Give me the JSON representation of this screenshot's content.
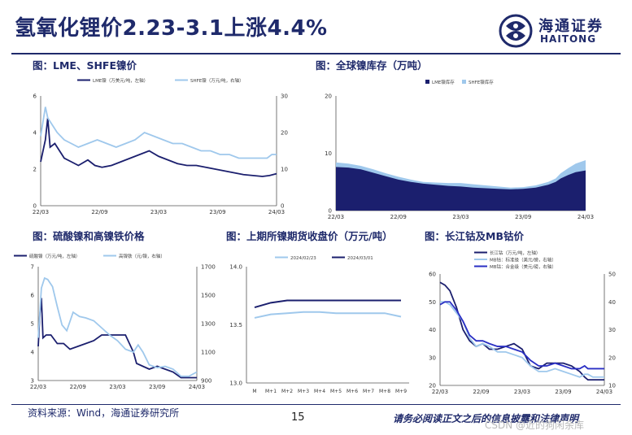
{
  "header": {
    "title": "氢氧化锂价2.23-3.1上涨4.4%",
    "logo_cn": "海通证券",
    "logo_en": "HAITONG"
  },
  "footer": {
    "source": "资料来源：Wind，海通证券研究所",
    "page": "15",
    "disclaimer": "请务必阅读正文之后的信息披露和法律声明",
    "watermark": "CSDN @近的狗闲余库"
  },
  "colors": {
    "navy": "#1b1f6e",
    "light": "#9fc8ec",
    "brand": "#1f2a6b"
  },
  "chart_data": [
    {
      "id": "lme_shfe",
      "type": "line",
      "title": "图：LME、SHFE镍价",
      "x_ticks": [
        "22/03",
        "22/09",
        "23/03",
        "23/09",
        "24/03"
      ],
      "y_left_ticks": [
        "0",
        "2",
        "4",
        "6"
      ],
      "y_right_ticks": [
        "0",
        "10",
        "20",
        "30"
      ],
      "ylim_left": [
        0,
        6
      ],
      "ylim_right": [
        0,
        30
      ],
      "series": [
        {
          "name": "LME镍（万美元/吨，左轴）",
          "axis": "left",
          "color": "#1b1f6e",
          "x": [
            0,
            0.02,
            0.03,
            0.04,
            0.06,
            0.08,
            0.1,
            0.13,
            0.16,
            0.2,
            0.23,
            0.26,
            0.3,
            0.34,
            0.38,
            0.42,
            0.46,
            0.5,
            0.54,
            0.58,
            0.62,
            0.66,
            0.7,
            0.74,
            0.78,
            0.82,
            0.86,
            0.9,
            0.94,
            0.97,
            1.0
          ],
          "values": [
            2.4,
            3.6,
            4.8,
            3.2,
            3.4,
            3.0,
            2.6,
            2.4,
            2.2,
            2.5,
            2.2,
            2.1,
            2.2,
            2.4,
            2.6,
            2.8,
            3.0,
            2.7,
            2.5,
            2.3,
            2.2,
            2.2,
            2.1,
            2.0,
            1.9,
            1.8,
            1.7,
            1.65,
            1.6,
            1.65,
            1.75
          ]
        },
        {
          "name": "SHFE镍（万元/吨，右轴）",
          "axis": "right",
          "color": "#9fc8ec",
          "x": [
            0,
            0.02,
            0.03,
            0.05,
            0.07,
            0.1,
            0.13,
            0.16,
            0.2,
            0.24,
            0.28,
            0.32,
            0.36,
            0.4,
            0.44,
            0.48,
            0.52,
            0.56,
            0.6,
            0.64,
            0.68,
            0.72,
            0.76,
            0.8,
            0.84,
            0.88,
            0.92,
            0.96,
            0.98,
            1.0
          ],
          "values": [
            19,
            27,
            24,
            22,
            20,
            18,
            17,
            16,
            17,
            18,
            17,
            16,
            17,
            18,
            20,
            19,
            18,
            17,
            17,
            16,
            15,
            15,
            14,
            14,
            13,
            13,
            13,
            13,
            14,
            14
          ]
        }
      ]
    },
    {
      "id": "inventory",
      "type": "area",
      "title": "图：全球镍库存（万吨）",
      "x_ticks": [
        "22/03",
        "22/09",
        "23/03",
        "23/09",
        "24/03"
      ],
      "y_ticks": [
        "0",
        "10",
        "20"
      ],
      "ylim": [
        0,
        20
      ],
      "series": [
        {
          "name": "LME镍库存",
          "color": "#1b1f6e",
          "x": [
            0,
            0.05,
            0.1,
            0.15,
            0.2,
            0.25,
            0.3,
            0.35,
            0.4,
            0.45,
            0.5,
            0.55,
            0.6,
            0.65,
            0.7,
            0.75,
            0.8,
            0.85,
            0.88,
            0.9,
            0.93,
            0.96,
            1.0
          ],
          "values": [
            7.6,
            7.5,
            7.2,
            6.6,
            6.0,
            5.4,
            5.0,
            4.7,
            4.5,
            4.3,
            4.2,
            4.0,
            3.9,
            3.8,
            3.7,
            3.8,
            4.0,
            4.5,
            5.0,
            5.6,
            6.2,
            6.7,
            7.0
          ]
        },
        {
          "name": "SHFE镍库存",
          "color": "#9fc8ec",
          "x": [
            0,
            0.05,
            0.1,
            0.15,
            0.2,
            0.25,
            0.3,
            0.35,
            0.4,
            0.45,
            0.5,
            0.55,
            0.6,
            0.65,
            0.7,
            0.75,
            0.8,
            0.85,
            0.88,
            0.9,
            0.93,
            0.96,
            1.0
          ],
          "values": [
            8.4,
            8.2,
            7.8,
            7.2,
            6.5,
            5.9,
            5.4,
            5.0,
            4.9,
            4.8,
            4.8,
            4.6,
            4.4,
            4.2,
            4.0,
            4.1,
            4.4,
            5.0,
            5.6,
            6.5,
            7.4,
            8.2,
            8.8
          ]
        }
      ]
    },
    {
      "id": "sulfate_ferro",
      "type": "line",
      "title": "图：硫酸镍和高镍铁价格",
      "x_ticks": [
        "22/03",
        "22/09",
        "23/03",
        "23/09",
        "24/03"
      ],
      "y_left_ticks": [
        "3",
        "4",
        "5",
        "6",
        "7"
      ],
      "y_right_ticks": [
        "900",
        "1100",
        "1300",
        "1500",
        "1700"
      ],
      "ylim_left": [
        3,
        7
      ],
      "ylim_right": [
        900,
        1700
      ],
      "series": [
        {
          "name": "硫酸镍（万元/吨，左轴）",
          "axis": "left",
          "color": "#1b1f6e",
          "x": [
            0,
            0.01,
            0.02,
            0.03,
            0.05,
            0.08,
            0.12,
            0.16,
            0.2,
            0.25,
            0.3,
            0.35,
            0.4,
            0.45,
            0.5,
            0.55,
            0.6,
            0.62,
            0.66,
            0.7,
            0.75,
            0.8,
            0.85,
            0.9,
            0.95,
            1.0
          ],
          "values": [
            4.2,
            5.3,
            5.9,
            4.5,
            4.6,
            4.6,
            4.3,
            4.3,
            4.1,
            4.2,
            4.3,
            4.4,
            4.6,
            4.6,
            4.6,
            4.6,
            4.0,
            3.6,
            3.5,
            3.4,
            3.5,
            3.4,
            3.3,
            3.1,
            3.1,
            3.1
          ]
        },
        {
          "name": "高镍铁（元/镍，右轴）",
          "axis": "right",
          "color": "#9fc8ec",
          "x": [
            0,
            0.02,
            0.04,
            0.06,
            0.09,
            0.12,
            0.15,
            0.18,
            0.22,
            0.26,
            0.3,
            0.35,
            0.4,
            0.45,
            0.5,
            0.55,
            0.6,
            0.63,
            0.66,
            0.7,
            0.75,
            0.8,
            0.85,
            0.9,
            0.95,
            1.0
          ],
          "values": [
            1200,
            1550,
            1620,
            1610,
            1560,
            1420,
            1290,
            1250,
            1380,
            1350,
            1340,
            1320,
            1270,
            1220,
            1180,
            1120,
            1100,
            1150,
            1100,
            1010,
            990,
            1000,
            980,
            930,
            930,
            960
          ]
        }
      ]
    },
    {
      "id": "shfe_curve",
      "type": "line",
      "title": "图：上期所镍期货收盘价（万元/吨）",
      "categories": [
        "M",
        "M+1",
        "M+2",
        "M+3",
        "M+4",
        "M+5",
        "M+6",
        "M+7",
        "M+8",
        "M+9"
      ],
      "y_ticks": [
        "13.0",
        "13.5",
        "14.0"
      ],
      "ylim": [
        13.0,
        14.0
      ],
      "series": [
        {
          "name": "2024/02/23",
          "color": "#9fc8ec",
          "values": [
            13.56,
            13.59,
            13.6,
            13.61,
            13.61,
            13.6,
            13.6,
            13.6,
            13.6,
            13.57
          ]
        },
        {
          "name": "2024/03/01",
          "color": "#1b1f6e",
          "values": [
            13.65,
            13.69,
            13.71,
            13.71,
            13.71,
            13.71,
            13.71,
            13.71,
            13.71,
            13.71
          ]
        }
      ]
    },
    {
      "id": "cobalt",
      "type": "line",
      "title": "图：长江钴及MB钴价",
      "x_ticks": [
        "22/03",
        "22/09",
        "23/03",
        "23/09",
        "24/03"
      ],
      "y_left_ticks": [
        "20",
        "30",
        "40",
        "50",
        "60"
      ],
      "y_right_ticks": [
        "10",
        "20",
        "30",
        "40",
        "50"
      ],
      "ylim_left": [
        20,
        60
      ],
      "ylim_right": [
        10,
        50
      ],
      "series": [
        {
          "name": "长江钴（万元/吨，左轴）",
          "axis": "left",
          "color": "#1b1f6e",
          "x": [
            0,
            0.03,
            0.06,
            0.1,
            0.14,
            0.18,
            0.22,
            0.26,
            0.3,
            0.35,
            0.4,
            0.45,
            0.5,
            0.55,
            0.6,
            0.65,
            0.7,
            0.75,
            0.8,
            0.85,
            0.88,
            0.9,
            0.93,
            0.96,
            1.0
          ],
          "values": [
            57,
            56,
            54,
            48,
            40,
            36,
            34,
            35,
            33,
            33,
            34,
            35,
            33,
            27,
            26,
            28,
            28,
            28,
            27,
            25,
            23,
            22,
            22,
            22,
            22
          ]
        },
        {
          "name": "MB钴：标准级（美元/磅，右轴）",
          "axis": "right",
          "color": "#9fc8ec",
          "x": [
            0,
            0.03,
            0.06,
            0.1,
            0.14,
            0.18,
            0.22,
            0.26,
            0.3,
            0.35,
            0.4,
            0.45,
            0.5,
            0.55,
            0.6,
            0.65,
            0.7,
            0.75,
            0.8,
            0.85,
            0.88,
            0.9,
            0.93,
            0.96,
            1.0
          ],
          "values": [
            40,
            40,
            39,
            36,
            33,
            27,
            24,
            25,
            24,
            22,
            22,
            21,
            20,
            17,
            15,
            15,
            16,
            15,
            14,
            13,
            14,
            14,
            13,
            13,
            13
          ]
        },
        {
          "name": "MB钴：合金级（美元/磅，右轴）",
          "axis": "right",
          "color": "#2a2fc4",
          "x": [
            0,
            0.03,
            0.06,
            0.1,
            0.14,
            0.18,
            0.22,
            0.26,
            0.3,
            0.35,
            0.4,
            0.45,
            0.5,
            0.55,
            0.6,
            0.65,
            0.7,
            0.75,
            0.8,
            0.85,
            0.88,
            0.9,
            0.93,
            0.96,
            1.0
          ],
          "values": [
            39,
            40,
            40,
            37,
            33,
            28,
            26,
            26,
            25,
            24,
            24,
            23,
            22,
            19,
            17,
            17,
            18,
            17,
            16,
            16,
            17,
            16,
            16,
            16,
            16
          ]
        }
      ]
    }
  ]
}
